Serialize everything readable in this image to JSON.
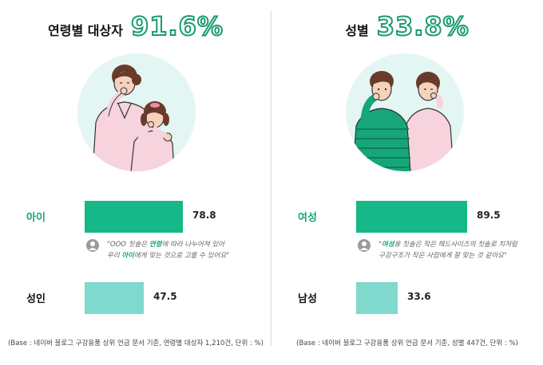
{
  "chart_data": [
    {
      "type": "bar",
      "orientation": "horizontal",
      "title": "연령별 대상자",
      "title_value": "91.6%",
      "categories": [
        "아이",
        "성인"
      ],
      "values": [
        78.8,
        47.5
      ],
      "value_labels": [
        "78.8",
        "47.5"
      ],
      "unit": "%",
      "colors": [
        "#15b886",
        "#7fd9cd"
      ],
      "quote": {
        "pre": "\"OOO 칫솔은 ",
        "hl1": "연령",
        "mid": "에 따라 나누어져 있어",
        "line2_pre": "우리 ",
        "hl2": "아이",
        "post": "에게 맞는 것으로 고를 수 있어요\""
      },
      "base_note": "(Base : 네이버 블로그 구강용품 상위 언급 문서 기준, 연령별 대상자 1,210건, 단위 : %)"
    },
    {
      "type": "bar",
      "orientation": "horizontal",
      "title": "성별",
      "title_value": "33.8%",
      "categories": [
        "여성",
        "남성"
      ],
      "values": [
        89.5,
        33.6
      ],
      "value_labels": [
        "89.5",
        "33.6"
      ],
      "unit": "%",
      "colors": [
        "#15b886",
        "#7fd9cd"
      ],
      "quote": {
        "pre": "\"",
        "hl1": "여성",
        "mid": "용 칫솔은 작은 헤드사이즈의 칫솔로 치처럼",
        "line2_pre": "구강구조가 작은 사람에게 잘 맞는 것 같아요\"",
        "hl2": "",
        "post": ""
      },
      "base_note": "(Base : 네이버 블로그 구강용품 상위 언급 문서 기준, 성별 447건, 단위 : %)"
    }
  ],
  "icons": [
    "user-avatar-icon",
    "mother-child-toothbrush-illustration",
    "couple-toothbrush-illustration"
  ]
}
